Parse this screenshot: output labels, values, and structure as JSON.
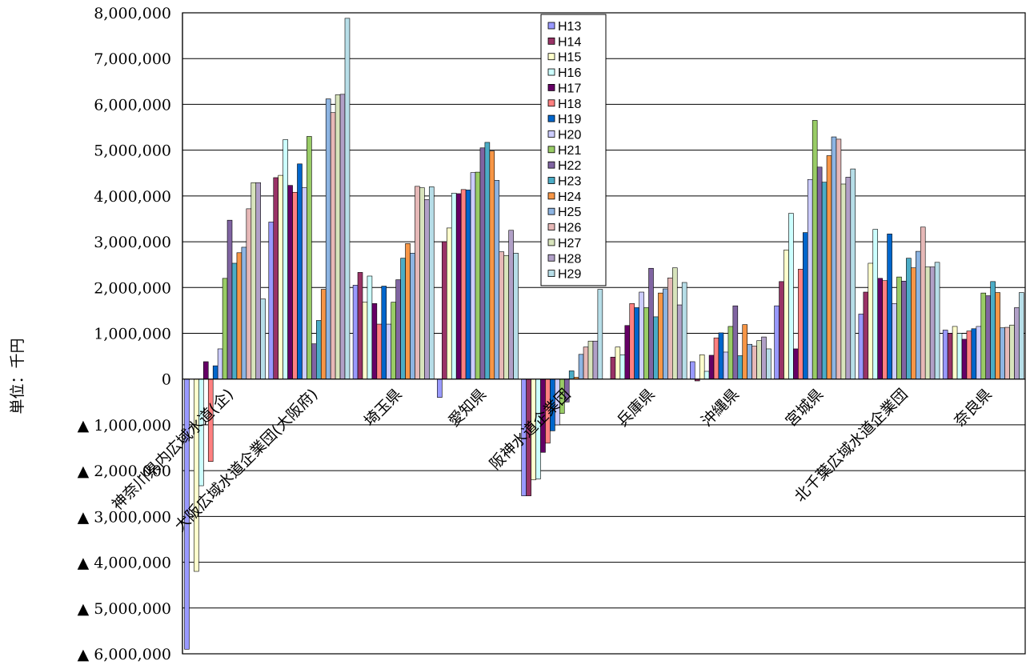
{
  "chart_data": {
    "type": "bar",
    "ylabel": "単位：千円",
    "ylim": [
      -6000000,
      8000000
    ],
    "yticks": [
      {
        "value": 8000000,
        "label": "8,000,000"
      },
      {
        "value": 7000000,
        "label": "7,000,000"
      },
      {
        "value": 6000000,
        "label": "6,000,000"
      },
      {
        "value": 5000000,
        "label": "5,000,000"
      },
      {
        "value": 4000000,
        "label": "4,000,000"
      },
      {
        "value": 3000000,
        "label": "3,000,000"
      },
      {
        "value": 2000000,
        "label": "2,000,000"
      },
      {
        "value": 1000000,
        "label": "1,000,000"
      },
      {
        "value": 0,
        "label": "0"
      },
      {
        "value": -1000000,
        "label": "▲ 1,000,000"
      },
      {
        "value": -2000000,
        "label": "▲ 2,000,000"
      },
      {
        "value": -3000000,
        "label": "▲ 3,000,000"
      },
      {
        "value": -4000000,
        "label": "▲ 4,000,000"
      },
      {
        "value": -5000000,
        "label": "▲ 5,000,000"
      },
      {
        "value": -6000000,
        "label": "▲ 6,000,000"
      }
    ],
    "grid": true,
    "legend_position": "top-center",
    "categories": [
      "神奈川県内広域水道(企)",
      "大阪広域水道企業団(大阪府)",
      "埼玉県",
      "愛知県",
      "阪神水道企業団",
      "兵庫県",
      "沖縄県",
      "宮城県",
      "北千葉広域水道企業団",
      "奈良県"
    ],
    "series": [
      {
        "name": "H13",
        "color": "#9999ff",
        "values": [
          -5900000,
          3430000,
          2050000,
          -400000,
          -2550000,
          0,
          380000,
          1600000,
          1420000,
          1070000
        ]
      },
      {
        "name": "H14",
        "color": "#993366",
        "values": [
          0,
          4400000,
          2330000,
          3000000,
          -2550000,
          480000,
          -40000,
          2130000,
          1900000,
          1000000
        ]
      },
      {
        "name": "H15",
        "color": "#ffffcc",
        "values": [
          -4200000,
          4450000,
          1680000,
          3300000,
          -2200000,
          700000,
          530000,
          2820000,
          2530000,
          1150000
        ]
      },
      {
        "name": "H16",
        "color": "#ccffff",
        "values": [
          -2330000,
          5230000,
          2250000,
          4060000,
          -2180000,
          530000,
          170000,
          3620000,
          3270000,
          1000000
        ]
      },
      {
        "name": "H17",
        "color": "#660066",
        "values": [
          380000,
          4230000,
          1650000,
          4050000,
          -1600000,
          1170000,
          520000,
          660000,
          2200000,
          870000
        ]
      },
      {
        "name": "H18",
        "color": "#ff8080",
        "values": [
          -1800000,
          4080000,
          1200000,
          4140000,
          -1400000,
          1650000,
          900000,
          2400000,
          2150000,
          1050000
        ]
      },
      {
        "name": "H19",
        "color": "#0066cc",
        "values": [
          290000,
          4700000,
          2030000,
          4130000,
          -1130000,
          1560000,
          1010000,
          3200000,
          3170000,
          1100000
        ]
      },
      {
        "name": "H20",
        "color": "#ccccff",
        "values": [
          660000,
          4180000,
          1200000,
          4510000,
          -1000000,
          1900000,
          590000,
          4360000,
          1650000,
          1150000
        ]
      },
      {
        "name": "H21",
        "color": "#99cc66",
        "values": [
          2200000,
          5300000,
          1680000,
          4520000,
          -750000,
          1560000,
          1150000,
          5650000,
          2230000,
          1880000
        ]
      },
      {
        "name": "H22",
        "color": "#8064a2",
        "values": [
          3470000,
          770000,
          2170000,
          5050000,
          -500000,
          2420000,
          1600000,
          4630000,
          2140000,
          1820000
        ]
      },
      {
        "name": "H23",
        "color": "#4bacc6",
        "values": [
          2530000,
          1280000,
          2640000,
          5170000,
          180000,
          1360000,
          510000,
          4300000,
          2640000,
          2130000
        ]
      },
      {
        "name": "H24",
        "color": "#f79646",
        "values": [
          2760000,
          1960000,
          2960000,
          4980000,
          40000,
          1880000,
          1190000,
          4880000,
          2430000,
          1890000
        ]
      },
      {
        "name": "H25",
        "color": "#8db4e2",
        "values": [
          2880000,
          6120000,
          2750000,
          4340000,
          540000,
          1970000,
          760000,
          5290000,
          2790000,
          1120000
        ]
      },
      {
        "name": "H26",
        "color": "#e6b8b7",
        "values": [
          3720000,
          5820000,
          4210000,
          2780000,
          700000,
          2210000,
          720000,
          5240000,
          3320000,
          1130000
        ]
      },
      {
        "name": "H27",
        "color": "#d8e4bc",
        "values": [
          4290000,
          6210000,
          4180000,
          2700000,
          830000,
          2430000,
          840000,
          4260000,
          2450000,
          1180000
        ]
      },
      {
        "name": "H28",
        "color": "#b1a0c7",
        "values": [
          4290000,
          6220000,
          3920000,
          3250000,
          830000,
          1620000,
          920000,
          4410000,
          2450000,
          1560000
        ]
      },
      {
        "name": "H29",
        "color": "#b7dee8",
        "values": [
          1750000,
          7880000,
          4200000,
          2750000,
          1960000,
          2110000,
          660000,
          4590000,
          2550000,
          1890000
        ]
      }
    ]
  }
}
